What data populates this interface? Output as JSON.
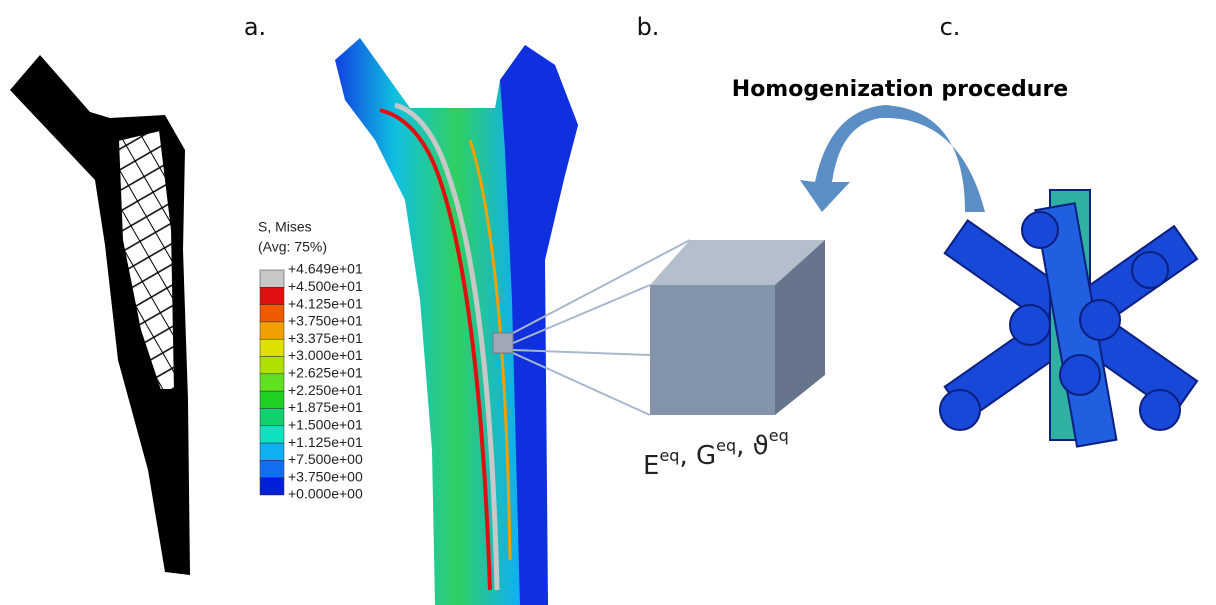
{
  "panel_labels": [
    "a.",
    "b.",
    "c."
  ],
  "title": "Homogenization procedure",
  "legend": {
    "heading": "S, Mises",
    "subheading": "(Avg: 75%)",
    "labels": [
      "+4.649e+01",
      "+4.500e+01",
      "+4.125e+01",
      "+3.750e+01",
      "+3.375e+01",
      "+3.000e+01",
      "+2.625e+01",
      "+2.250e+01",
      "+1.875e+01",
      "+1.500e+01",
      "+1.125e+01",
      "+7.500e+00",
      "+3.750e+00",
      "+0.000e+00"
    ],
    "colors": [
      "#c8c8c8",
      "#e01010",
      "#f05a00",
      "#f0a000",
      "#e0e000",
      "#b0e000",
      "#60e020",
      "#20d020",
      "#10d070",
      "#10e0c0",
      "#10b0f0",
      "#1070f0",
      "#0020d8"
    ]
  },
  "formula": {
    "separator": ", ",
    "terms": [
      {
        "base": "E",
        "sup": "eq"
      },
      {
        "base": "G",
        "sup": "eq"
      },
      {
        "base": "ϑ",
        "sup": "eq"
      }
    ]
  }
}
